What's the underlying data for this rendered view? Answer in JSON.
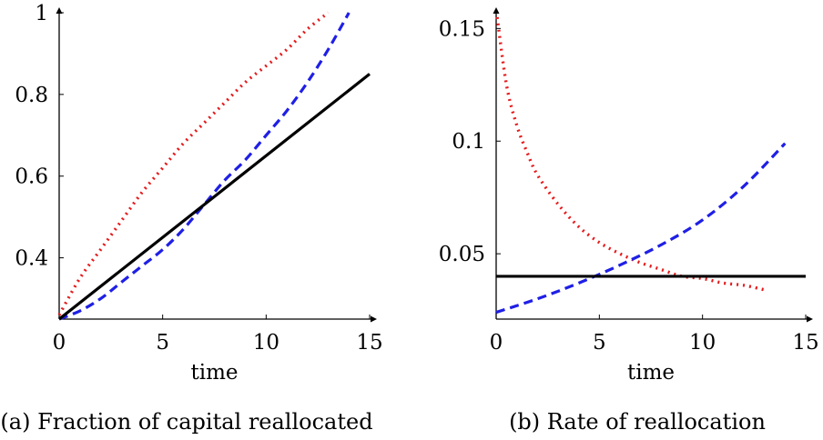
{
  "chart_data": [
    {
      "type": "line",
      "caption": "(a) Fraction of capital reallocated",
      "xlabel": "time",
      "ylabel": "",
      "xlim": [
        0,
        15
      ],
      "ylim": [
        0.25,
        1.0
      ],
      "xticks": [
        0,
        5,
        10,
        15
      ],
      "yticks": [
        0.4,
        0.6,
        0.8,
        1
      ],
      "x_tick_labels": [
        "0",
        "5",
        "10",
        "15"
      ],
      "y_tick_labels": [
        "0.4",
        "0.6",
        "0.8",
        "1"
      ],
      "grid": false,
      "series": [
        {
          "color": "#e41a1c",
          "style": "dotted",
          "x": [
            0,
            1,
            2,
            3,
            4,
            5,
            6,
            7,
            8,
            9,
            10,
            11,
            12,
            13
          ],
          "y": [
            0.26,
            0.35,
            0.42,
            0.49,
            0.56,
            0.62,
            0.68,
            0.73,
            0.78,
            0.83,
            0.87,
            0.91,
            0.96,
            1.0
          ]
        },
        {
          "color": "#1f1fe6",
          "style": "dashed",
          "x": [
            0,
            1,
            2,
            3,
            4,
            5,
            6,
            7,
            8,
            9,
            10,
            11,
            12,
            13,
            14
          ],
          "y": [
            0.25,
            0.27,
            0.3,
            0.34,
            0.38,
            0.42,
            0.47,
            0.53,
            0.59,
            0.64,
            0.7,
            0.76,
            0.83,
            0.91,
            1.0
          ]
        },
        {
          "color": "#000000",
          "style": "solid",
          "x": [
            0,
            15
          ],
          "y": [
            0.25,
            0.85
          ]
        }
      ]
    },
    {
      "type": "line",
      "caption": "(b) Rate of reallocation",
      "xlabel": "time",
      "ylabel": "",
      "xlim": [
        0,
        15
      ],
      "ylim": [
        0.021,
        0.157
      ],
      "xticks": [
        0,
        5,
        10,
        15
      ],
      "yticks": [
        0.05,
        0.1,
        0.15
      ],
      "x_tick_labels": [
        "0",
        "5",
        "10",
        "15"
      ],
      "y_tick_labels": [
        "0.05",
        "0.1",
        "0.15"
      ],
      "grid": false,
      "series": [
        {
          "color": "#e41a1c",
          "style": "dotted",
          "x": [
            0.05,
            0.5,
            1,
            1.5,
            2,
            3,
            4,
            5,
            6,
            7,
            8,
            9,
            10,
            11,
            12,
            13
          ],
          "y": [
            0.155,
            0.125,
            0.107,
            0.095,
            0.085,
            0.072,
            0.062,
            0.055,
            0.05,
            0.046,
            0.043,
            0.04,
            0.039,
            0.037,
            0.036,
            0.034
          ]
        },
        {
          "color": "#1f1fe6",
          "style": "dashed",
          "x": [
            0,
            2,
            4,
            6,
            8,
            10,
            12,
            14
          ],
          "y": [
            0.024,
            0.03,
            0.037,
            0.045,
            0.054,
            0.065,
            0.08,
            0.099
          ]
        },
        {
          "color": "#000000",
          "style": "solid",
          "x": [
            0,
            15
          ],
          "y": [
            0.04,
            0.04
          ]
        }
      ]
    }
  ]
}
